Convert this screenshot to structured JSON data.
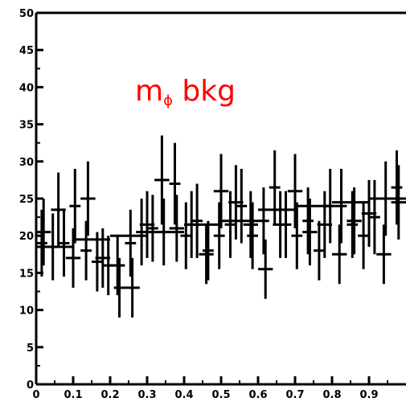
{
  "chart_data": {
    "type": "scatter",
    "title": "",
    "xlabel": "",
    "ylabel": "",
    "xlim": [
      0,
      1
    ],
    "ylim": [
      0,
      50
    ],
    "x_ticks": [
      0,
      0.1,
      0.2,
      0.3,
      0.4,
      0.5,
      0.6,
      0.7,
      0.8,
      0.9
    ],
    "x_tick_labels": [
      "0",
      "0.1",
      "0.2",
      "0.3",
      "0.4",
      "0.5",
      "0.6",
      "0.7",
      "0.8",
      "0.9"
    ],
    "y_ticks": [
      0,
      5,
      10,
      15,
      20,
      25,
      30,
      35,
      40,
      45,
      50
    ],
    "y_tick_labels": [
      "0",
      "5",
      "10",
      "15",
      "20",
      "25",
      "30",
      "35",
      "40",
      "45",
      "50"
    ],
    "annotation": {
      "main": "m",
      "sub": "ϕ",
      "suffix": " bkg",
      "color": "#ff0000"
    },
    "series": [
      {
        "bin_width": 0.04,
        "x": [
          0.02,
          0.06,
          0.1,
          0.14,
          0.18,
          0.22,
          0.26,
          0.3,
          0.34,
          0.38,
          0.42,
          0.46,
          0.5,
          0.54,
          0.58,
          0.62,
          0.66,
          0.7,
          0.74,
          0.78,
          0.82,
          0.86,
          0.9,
          0.94,
          0.98
        ],
        "y": [
          20.5,
          23.5,
          17.0,
          25.0,
          17.0,
          16.0,
          13.0,
          21.5,
          27.5,
          21.0,
          21.5,
          17.5,
          26.0,
          24.5,
          21.5,
          15.5,
          21.5,
          26.0,
          20.5,
          21.5,
          17.5,
          22.0,
          23.0,
          17.5,
          24.5
        ],
        "y_err": [
          4.5,
          5.0,
          4.0,
          5.0,
          4.0,
          4.0,
          4.0,
          4.5,
          6.0,
          4.5,
          4.5,
          4.0,
          5.0,
          5.0,
          4.5,
          4.0,
          4.5,
          5.0,
          4.5,
          4.5,
          4.0,
          4.5,
          4.5,
          4.0,
          5.0
        ]
      },
      {
        "bin_width": 0.05,
        "x": [
          0.025,
          0.075,
          0.125,
          0.175,
          0.225,
          0.275,
          0.325,
          0.375,
          0.425,
          0.475,
          0.525,
          0.575,
          0.625,
          0.675,
          0.725,
          0.775,
          0.825,
          0.875,
          0.925,
          0.975
        ],
        "y": [
          18.5,
          18.5,
          19.5,
          19.5,
          20.0,
          20.0,
          20.5,
          20.5,
          21.5,
          21.5,
          22.0,
          22.0,
          23.5,
          23.5,
          24.0,
          24.0,
          24.5,
          24.5,
          25.0,
          25.0
        ]
      },
      {
        "bin_width": 0.03,
        "x": [
          0.015,
          0.045,
          0.075,
          0.105,
          0.135,
          0.165,
          0.195,
          0.225,
          0.255,
          0.285,
          0.315,
          0.345,
          0.375,
          0.405,
          0.435,
          0.465,
          0.495,
          0.525,
          0.555,
          0.585,
          0.615,
          0.645,
          0.675,
          0.705,
          0.735,
          0.765,
          0.795,
          0.825,
          0.855,
          0.885,
          0.915,
          0.945,
          0.975
        ],
        "y": [
          19.0,
          18.5,
          19.0,
          24.0,
          18.0,
          16.5,
          16.0,
          13.0,
          19.0,
          20.5,
          21.0,
          20.5,
          27.0,
          20.0,
          22.0,
          18.0,
          20.0,
          21.5,
          24.0,
          20.0,
          22.0,
          26.5,
          21.5,
          20.0,
          22.0,
          18.0,
          24.0,
          24.0,
          21.5,
          20.0,
          22.5,
          25.0,
          26.5
        ],
        "y_err": [
          4.5,
          4.5,
          4.5,
          5.0,
          4.0,
          4.0,
          4.0,
          4.0,
          4.5,
          4.5,
          4.5,
          4.5,
          5.5,
          4.5,
          5.0,
          4.0,
          4.5,
          4.5,
          5.0,
          4.5,
          4.5,
          5.0,
          4.5,
          4.5,
          4.5,
          4.0,
          5.0,
          5.0,
          4.5,
          4.5,
          5.0,
          5.0,
          5.0
        ]
      }
    ]
  }
}
